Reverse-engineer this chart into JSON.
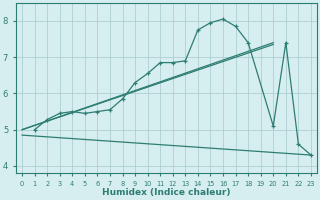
{
  "xlabel": "Humidex (Indice chaleur)",
  "background_color": "#d6eef0",
  "grid_color": "#aecfd4",
  "line_color": "#2e7d72",
  "xlim": [
    -0.5,
    23.5
  ],
  "ylim": [
    3.8,
    8.5
  ],
  "xticks": [
    0,
    1,
    2,
    3,
    4,
    5,
    6,
    7,
    8,
    9,
    10,
    11,
    12,
    13,
    14,
    15,
    16,
    17,
    18,
    19,
    20,
    21,
    22,
    23
  ],
  "yticks": [
    4,
    5,
    6,
    7,
    8
  ],
  "curve_x": [
    1,
    2,
    3,
    4,
    5,
    6,
    7,
    8,
    9,
    10,
    11,
    12,
    13,
    14,
    15,
    16,
    17,
    18,
    20,
    21,
    22,
    23
  ],
  "curve_y": [
    5.0,
    5.28,
    5.45,
    5.5,
    5.45,
    5.5,
    5.55,
    5.85,
    6.3,
    6.55,
    6.85,
    6.85,
    6.9,
    7.75,
    7.95,
    8.05,
    7.85,
    7.4,
    5.1,
    7.4,
    4.6,
    4.3
  ],
  "line1_x": [
    0,
    20
  ],
  "line1_y": [
    5.0,
    7.4
  ],
  "line2_x": [
    0,
    20
  ],
  "line2_y": [
    5.0,
    7.35
  ],
  "line3_x": [
    0,
    23
  ],
  "line3_y": [
    4.85,
    4.3
  ]
}
